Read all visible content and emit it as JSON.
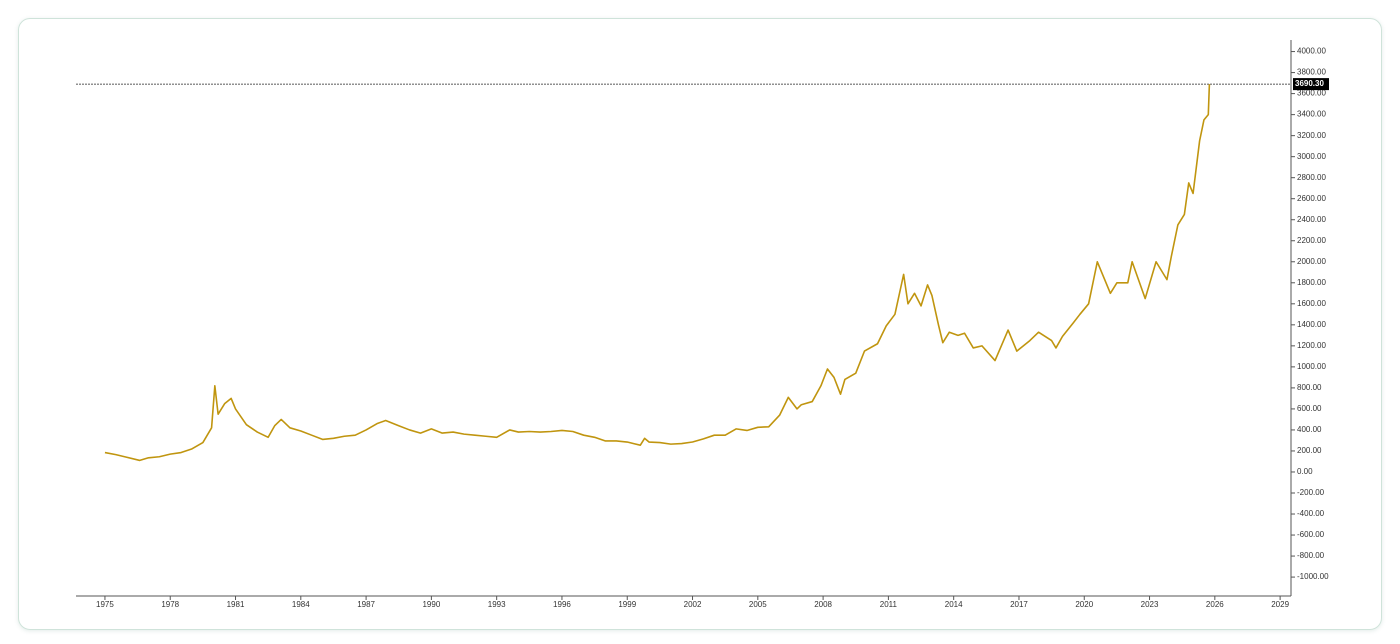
{
  "chart_data": {
    "type": "line",
    "color": "#c0950f",
    "x": [
      1975.0,
      1975.5,
      1976.0,
      1976.6,
      1977.0,
      1977.5,
      1978.0,
      1978.5,
      1979.0,
      1979.5,
      1979.9,
      1980.05,
      1980.2,
      1980.5,
      1980.8,
      1981.0,
      1981.5,
      1982.0,
      1982.5,
      1982.8,
      1983.1,
      1983.5,
      1984.0,
      1984.5,
      1985.0,
      1985.5,
      1986.0,
      1986.5,
      1987.0,
      1987.5,
      1987.9,
      1988.5,
      1989.0,
      1989.5,
      1990.0,
      1990.5,
      1991.0,
      1991.5,
      1992.0,
      1992.5,
      1993.0,
      1993.6,
      1994.0,
      1994.5,
      1995.0,
      1995.5,
      1996.0,
      1996.5,
      1997.0,
      1997.5,
      1998.0,
      1998.5,
      1999.0,
      1999.6,
      1999.8,
      2000.0,
      2000.5,
      2001.0,
      2001.5,
      2002.0,
      2002.5,
      2003.0,
      2003.5,
      2004.0,
      2004.5,
      2005.0,
      2005.5,
      2006.0,
      2006.4,
      2006.8,
      2007.0,
      2007.5,
      2007.9,
      2008.2,
      2008.5,
      2008.8,
      2009.0,
      2009.5,
      2009.9,
      2010.5,
      2010.9,
      2011.3,
      2011.7,
      2011.9,
      2012.2,
      2012.5,
      2012.8,
      2013.0,
      2013.3,
      2013.5,
      2013.8,
      2014.2,
      2014.5,
      2014.9,
      2015.3,
      2015.9,
      2016.5,
      2016.9,
      2017.5,
      2017.9,
      2018.5,
      2018.7,
      2019.0,
      2019.5,
      2019.8,
      2020.2,
      2020.6,
      2020.9,
      2021.2,
      2021.5,
      2022.0,
      2022.2,
      2022.8,
      2023.3,
      2023.8,
      2024.0,
      2024.3,
      2024.6,
      2024.8,
      2025.0,
      2025.3,
      2025.5,
      2025.7,
      2025.75
    ],
    "values": [
      185,
      165,
      140,
      110,
      135,
      145,
      170,
      185,
      220,
      280,
      420,
      820,
      550,
      650,
      700,
      600,
      450,
      380,
      330,
      440,
      500,
      420,
      390,
      350,
      310,
      320,
      340,
      350,
      400,
      460,
      490,
      440,
      400,
      370,
      410,
      370,
      380,
      360,
      350,
      340,
      330,
      400,
      380,
      385,
      380,
      385,
      395,
      385,
      350,
      330,
      295,
      295,
      285,
      255,
      320,
      285,
      280,
      265,
      270,
      285,
      315,
      350,
      350,
      410,
      395,
      425,
      430,
      540,
      710,
      600,
      640,
      670,
      820,
      980,
      900,
      740,
      880,
      940,
      1150,
      1220,
      1390,
      1500,
      1880,
      1600,
      1700,
      1580,
      1780,
      1680,
      1400,
      1230,
      1330,
      1300,
      1320,
      1180,
      1200,
      1060,
      1350,
      1150,
      1250,
      1330,
      1250,
      1180,
      1290,
      1420,
      1500,
      1600,
      2000,
      1850,
      1700,
      1800,
      1800,
      2000,
      1650,
      2000,
      1830,
      2050,
      2350,
      2450,
      2750,
      2650,
      3150,
      3350,
      3400,
      3690.3
    ],
    "xlim": [
      1973.67,
      2029.5
    ],
    "xticks": [
      1975,
      1978,
      1981,
      1984,
      1987,
      1990,
      1993,
      1996,
      1999,
      2002,
      2005,
      2008,
      2011,
      2014,
      2017,
      2020,
      2023,
      2026,
      2029
    ],
    "ylim": [
      -1180,
      4110
    ],
    "yticks": [
      {
        "value": 4000,
        "label": "4000.00"
      },
      {
        "value": 3800,
        "label": "3800.00"
      },
      {
        "value": 3600,
        "label": "3600.00"
      },
      {
        "value": 3400,
        "label": "3400.00"
      },
      {
        "value": 3200,
        "label": "3200.00"
      },
      {
        "value": 3000,
        "label": "3000.00"
      },
      {
        "value": 2800,
        "label": "2800.00"
      },
      {
        "value": 2600,
        "label": "2600.00"
      },
      {
        "value": 2400,
        "label": "2400.00"
      },
      {
        "value": 2200,
        "label": "2200.00"
      },
      {
        "value": 2000,
        "label": "2000.00"
      },
      {
        "value": 1800,
        "label": "1800.00"
      },
      {
        "value": 1600,
        "label": "1600.00"
      },
      {
        "value": 1400,
        "label": "1400.00"
      },
      {
        "value": 1200,
        "label": "1200.00"
      },
      {
        "value": 1000,
        "label": "1000.00"
      },
      {
        "value": 800,
        "label": "800.00"
      },
      {
        "value": 600,
        "label": "600.00"
      },
      {
        "value": 400,
        "label": "400.00"
      },
      {
        "value": 200,
        "label": "200.00"
      },
      {
        "value": 0,
        "label": "0.00"
      },
      {
        "value": -200,
        "label": "-200.00"
      },
      {
        "value": -400,
        "label": "-400.00"
      },
      {
        "value": -600,
        "label": "-600.00"
      },
      {
        "value": -800,
        "label": "-800.00"
      },
      {
        "value": -1000,
        "label": "-1000.00"
      }
    ],
    "current": {
      "value": 3690.3,
      "label": "3690.30"
    }
  }
}
